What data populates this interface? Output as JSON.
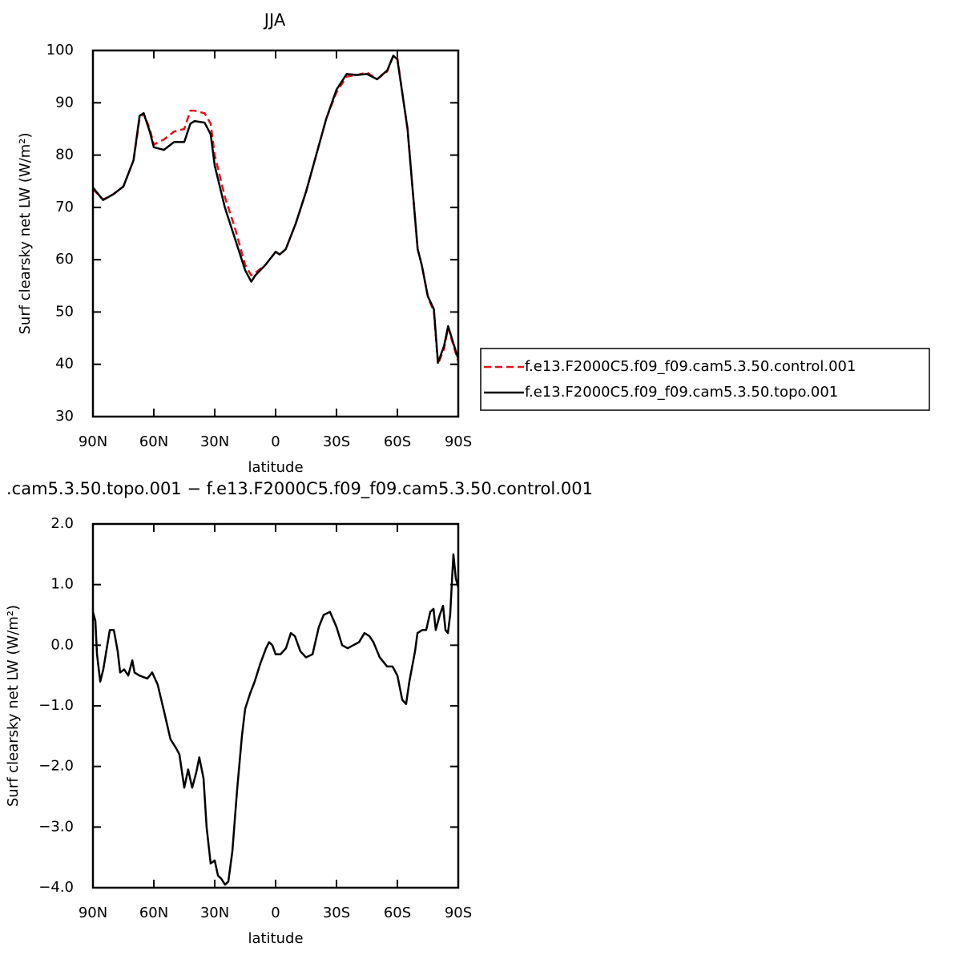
{
  "chart_data": [
    {
      "type": "line",
      "title": "JJA",
      "x_label": "latitude",
      "y_label": "Surf clearsky net LW (W/m²)",
      "xlim": [
        90,
        -90
      ],
      "xticks": [
        {
          "value": 90,
          "label": "90N"
        },
        {
          "value": 60,
          "label": "60N"
        },
        {
          "value": 30,
          "label": "30N"
        },
        0,
        {
          "value": -30,
          "label": "30S"
        },
        {
          "value": -60,
          "label": "60S"
        },
        {
          "value": -90,
          "label": "90S"
        }
      ],
      "ylim": [
        30,
        100
      ],
      "yticks": [
        30,
        40,
        50,
        60,
        70,
        80,
        90,
        100
      ],
      "grid": false,
      "legend": "right",
      "x": [
        90,
        85,
        80,
        75,
        70,
        67,
        65,
        62,
        60,
        55,
        50,
        45,
        42,
        40,
        35,
        32,
        30,
        25,
        20,
        15,
        12,
        10,
        5,
        0,
        -2,
        -5,
        -10,
        -15,
        -20,
        -25,
        -30,
        -35,
        -40,
        -45,
        -50,
        -55,
        -58,
        -60,
        -65,
        -70,
        -72,
        -75,
        -78,
        -80,
        -83,
        -85,
        -90
      ],
      "series": [
        {
          "name": "f.e13.F2000C5.f09_f09.cam5.3.50.control.001",
          "color": "#e8101a",
          "dash": true,
          "values": [
            73.5,
            71.5,
            72.5,
            74,
            79,
            87,
            88,
            85,
            82,
            83,
            84.5,
            85,
            88.5,
            88.5,
            88,
            86,
            80,
            72,
            66,
            59,
            57,
            57.5,
            59,
            61.5,
            61,
            62,
            67,
            73,
            80,
            87,
            92,
            95,
            95.3,
            95.8,
            94.5,
            96,
            99,
            98.5,
            85,
            62,
            59,
            53,
            50,
            40,
            43,
            47,
            40.5
          ]
        },
        {
          "name": "f.e13.F2000C5.f09_f09.cam5.3.50.topo.001",
          "color": "#000000",
          "dash": false,
          "values": [
            73.8,
            71.4,
            72.5,
            74,
            79,
            87.5,
            88,
            84.5,
            81.5,
            81,
            82.5,
            82.5,
            86,
            86.5,
            86.2,
            84,
            78,
            70,
            64,
            58,
            55.8,
            57,
            59,
            61.5,
            61,
            62,
            67,
            73,
            80,
            87,
            92.5,
            95.5,
            95.3,
            95.5,
            94.5,
            96.2,
            99,
            98.3,
            85,
            62,
            59,
            53,
            50.5,
            40.3,
            43.5,
            47.3,
            41
          ]
        }
      ]
    },
    {
      "type": "line",
      "title": ".cam5.3.50.topo.001 − f.e13.F2000C5.f09_f09.cam5.3.50.control.001",
      "x_label": "latitude",
      "y_label": "Surf clearsky net LW (W/m²)",
      "xlim": [
        90,
        -90
      ],
      "xticks": [
        {
          "value": 90,
          "label": "90N"
        },
        {
          "value": 60,
          "label": "60N"
        },
        {
          "value": 30,
          "label": "30N"
        },
        0,
        {
          "value": -30,
          "label": "30S"
        },
        {
          "value": -60,
          "label": "60S"
        },
        {
          "value": -90,
          "label": "90S"
        }
      ],
      "ylim": [
        -4,
        2
      ],
      "yticks": [
        {
          "value": -4,
          "label": "−4.0"
        },
        {
          "value": -3,
          "label": "−3.0"
        },
        {
          "value": -2,
          "label": "−2.0"
        },
        {
          "value": -1,
          "label": "−1.0"
        },
        {
          "value": 0,
          "label": "0.0"
        },
        {
          "value": 1,
          "label": "1.0"
        },
        {
          "value": 2,
          "label": "2.0"
        }
      ],
      "grid": false,
      "x": [
        90,
        88.8,
        88,
        86.4,
        84.9,
        81.7,
        79.7,
        77.8,
        76.6,
        74.6,
        72.6,
        70.6,
        69.5,
        67.1,
        63.2,
        60.8,
        58.1,
        54.9,
        51.8,
        49,
        47.4,
        45,
        43.1,
        41.1,
        39.1,
        37.6,
        35.5,
        34,
        32,
        30,
        28.4,
        26.8,
        24.9,
        23.3,
        21.3,
        19,
        16.6,
        15,
        12.6,
        10.3,
        7.5,
        4.7,
        3.2,
        1.6,
        0,
        -2.4,
        -5.1,
        -7.5,
        -9.5,
        -12.2,
        -15,
        -18.2,
        -21.3,
        -23.7,
        -26.8,
        -30,
        -32.8,
        -35.5,
        -38.3,
        -41.1,
        -43.8,
        -46.2,
        -48.2,
        -51.3,
        -54.9,
        -57.6,
        -60,
        -62.4,
        -64.3,
        -65.9,
        -68.7,
        -69.9,
        -72.2,
        -74.2,
        -76.2,
        -77.8,
        -78.9,
        -80.9,
        -82.5,
        -83.7,
        -84.9,
        -86,
        -87.6,
        -88.8,
        -90
      ],
      "series": [
        {
          "color": "#000000",
          "dash": false,
          "values": [
            0.55,
            0.4,
            -0.15,
            -0.6,
            -0.4,
            0.25,
            0.25,
            -0.1,
            -0.45,
            -0.4,
            -0.5,
            -0.25,
            -0.45,
            -0.5,
            -0.55,
            -0.45,
            -0.65,
            -1.1,
            -1.55,
            -1.7,
            -1.8,
            -2.35,
            -2.05,
            -2.35,
            -2.1,
            -1.85,
            -2.2,
            -3,
            -3.6,
            -3.55,
            -3.8,
            -3.85,
            -3.95,
            -3.9,
            -3.4,
            -2.4,
            -1.5,
            -1.05,
            -0.8,
            -0.6,
            -0.3,
            -0.05,
            0.05,
            0,
            -0.15,
            -0.15,
            -0.05,
            0.2,
            0.15,
            -0.1,
            -0.2,
            -0.15,
            0.3,
            0.5,
            0.55,
            0.3,
            0,
            -0.05,
            0,
            0.05,
            0.2,
            0.15,
            0.05,
            -0.2,
            -0.35,
            -0.35,
            -0.5,
            -0.9,
            -0.97,
            -0.6,
            -0.1,
            0.2,
            0.25,
            0.25,
            0.55,
            0.6,
            0.25,
            0.5,
            0.65,
            0.25,
            0.2,
            0.5,
            1.5,
            1.1,
            0.95
          ]
        }
      ]
    }
  ]
}
